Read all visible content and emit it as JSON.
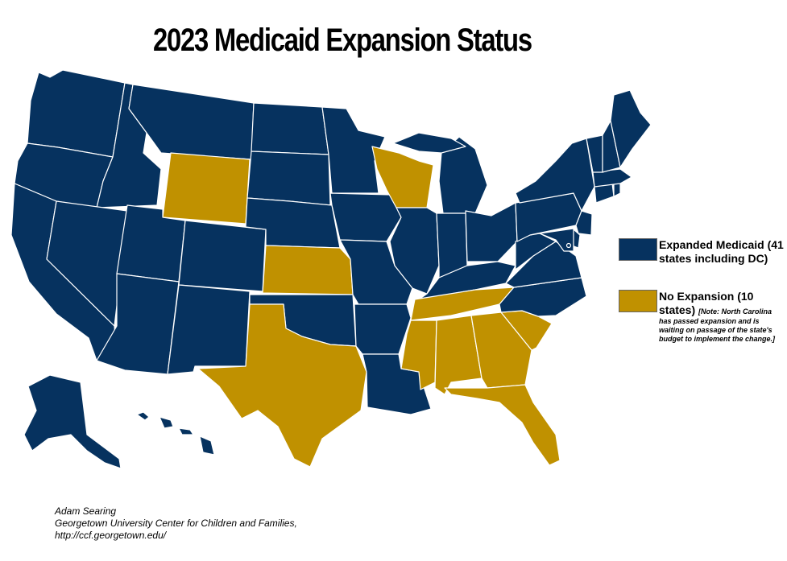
{
  "title": "2023 Medicaid Expansion Status",
  "colors": {
    "expanded": "#06325f",
    "no_expansion": "#c09100",
    "border": "#ffffff"
  },
  "legend": {
    "expanded": {
      "label_line1": "Expanded Medicaid (41",
      "label_line2": "states including DC)"
    },
    "no_expansion": {
      "label_line1": "No Expansion (10",
      "label_line2": "states)",
      "note_line1": "[Note: North Carolina",
      "note_line2": "has passed expansion and is",
      "note_line3": "waiting on passage of the state's",
      "note_line4": "budget to implement the change.]"
    }
  },
  "credit": {
    "line1": "Adam Searing",
    "line2": "Georgetown University Center for Children and Families,",
    "line3": "http://ccf.georgetown.edu/"
  },
  "no_expansion_states": [
    "WY",
    "WI",
    "KS",
    "TX",
    "TN",
    "MS",
    "AL",
    "GA",
    "SC",
    "FL"
  ]
}
